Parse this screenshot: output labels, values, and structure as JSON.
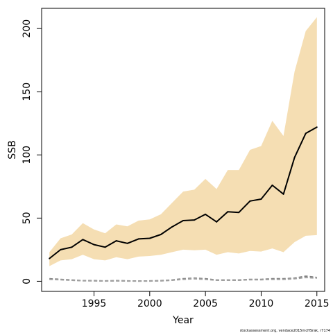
{
  "chart_data": {
    "type": "line",
    "title": "",
    "xlabel": "Year",
    "ylabel": "SSB",
    "xlim": [
      1990.3,
      2015.7
    ],
    "ylim": [
      -8,
      216
    ],
    "x_ticks": [
      1995,
      2000,
      2005,
      2010,
      2015
    ],
    "y_ticks": [
      0,
      50,
      100,
      150,
      200
    ],
    "grid": false,
    "legend": "none",
    "x": [
      1991,
      1992,
      1993,
      1994,
      1995,
      1996,
      1997,
      1998,
      1999,
      2000,
      2001,
      2002,
      2003,
      2004,
      2005,
      2006,
      2007,
      2008,
      2009,
      2010,
      2011,
      2012,
      2013,
      2014,
      2015
    ],
    "series": [
      {
        "role": "estimate",
        "values": [
          18,
          25,
          27,
          33,
          29,
          27,
          32,
          30,
          33.5,
          34,
          37,
          43,
          48,
          48.5,
          53,
          47,
          55,
          54.5,
          63.5,
          65,
          76,
          69,
          98,
          117,
          122
        ],
        "color": "#000000"
      },
      {
        "role": "confidence-upper",
        "values": [
          23,
          34,
          37,
          46,
          41,
          38,
          45,
          43.5,
          48,
          49,
          53,
          62,
          71,
          72.5,
          81,
          73,
          88,
          88,
          104,
          107,
          127,
          115,
          166,
          198,
          209
        ],
        "color": "#f5deb3"
      },
      {
        "role": "confidence-lower",
        "values": [
          12,
          16.5,
          17.5,
          21,
          17.5,
          16.5,
          19,
          17.5,
          19.5,
          20,
          21,
          23,
          25,
          24.5,
          25,
          21,
          23,
          22,
          24,
          23.5,
          26,
          23,
          31,
          36,
          36.5
        ],
        "color": "#f5deb3"
      },
      {
        "role": "secondary-dashed-1",
        "values": [
          2,
          1.5,
          1,
          0.5,
          0.5,
          0.3,
          0.5,
          0.3,
          0.2,
          0.3,
          0.5,
          1,
          2,
          2.5,
          2,
          1,
          1,
          1,
          1.5,
          1.5,
          2,
          2,
          2.5,
          4,
          3
        ],
        "color": "#808080"
      },
      {
        "role": "secondary-dashed-2",
        "values": [
          1.5,
          1.2,
          0.8,
          0.4,
          0.3,
          0.2,
          0.3,
          0.2,
          0.1,
          0.2,
          0.3,
          0.8,
          1.5,
          2,
          1.5,
          0.8,
          0.8,
          0.8,
          1.2,
          1.2,
          1.5,
          1.5,
          2,
          3,
          2.5
        ],
        "color": "#a0a0a0"
      }
    ],
    "footnote": "stockassessment.org, vendace2015mcHSrak, r7174"
  }
}
